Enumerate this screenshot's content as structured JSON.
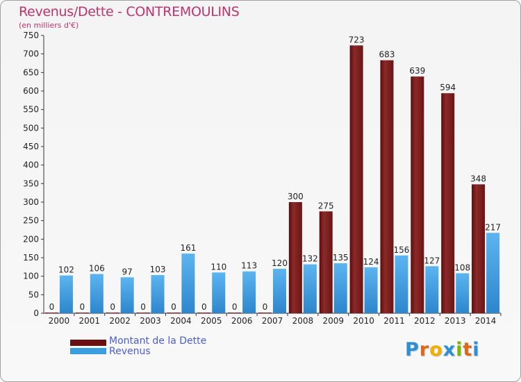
{
  "title": "Revenus/Dette - CONTREMOULINS",
  "subtitle": "(en milliers d'€)",
  "logo": "Proxiti",
  "colors": {
    "title": "#c0336a",
    "legend_text": "#4a5cd8",
    "dette": "#7a1a1a",
    "revenus": "#3a9ee0"
  },
  "chart_data": {
    "type": "bar",
    "categories": [
      "2000",
      "2001",
      "2002",
      "2003",
      "2004",
      "2005",
      "2006",
      "2007",
      "2008",
      "2009",
      "2010",
      "2011",
      "2012",
      "2013",
      "2014"
    ],
    "series": [
      {
        "name": "Montant de la Dette",
        "values": [
          0,
          0,
          0,
          0,
          0,
          0,
          0,
          0,
          300,
          275,
          723,
          683,
          639,
          594,
          348
        ]
      },
      {
        "name": "Revenus",
        "values": [
          102,
          106,
          97,
          103,
          161,
          110,
          113,
          120,
          132,
          135,
          124,
          156,
          127,
          108,
          217
        ]
      }
    ],
    "ylim": [
      0,
      750
    ],
    "yticks": [
      0,
      50,
      100,
      150,
      200,
      250,
      300,
      350,
      400,
      450,
      500,
      550,
      600,
      650,
      700,
      750
    ],
    "grid": false,
    "legend_position": "bottom-left"
  }
}
